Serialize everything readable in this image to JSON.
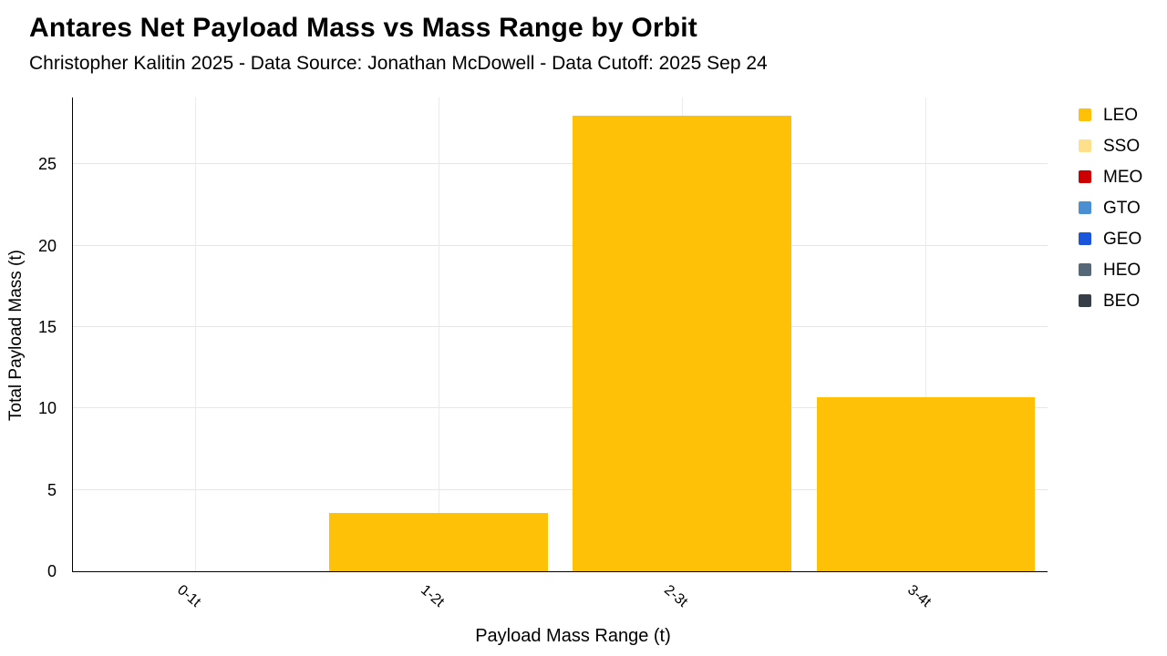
{
  "header": {
    "title": "Antares Net Payload Mass vs Mass Range by Orbit",
    "subtitle": "Christopher Kalitin 2025 - Data Source: Jonathan McDowell - Data Cutoff: 2025 Sep 24"
  },
  "chart_data": {
    "type": "bar",
    "stacked": true,
    "title": "Antares Net Payload Mass vs Mass Range by Orbit",
    "subtitle": "Christopher Kalitin 2025 - Data Source: Jonathan McDowell - Data Cutoff: 2025 Sep 24",
    "categories": [
      "0-1t",
      "1-2t",
      "2-3t",
      "3-4t"
    ],
    "series": [
      {
        "name": "LEO",
        "color": "#FFC107",
        "values": [
          0,
          3.6,
          28,
          10.7
        ]
      }
    ],
    "xlabel": "Payload Mass Range (t)",
    "ylabel": "Total Payload Mass (t)",
    "ylim": [
      0,
      29.1
    ],
    "yticks": [
      0,
      5,
      10,
      15,
      20,
      25
    ],
    "grid": true,
    "legend_position": "right"
  },
  "legend": {
    "items": [
      {
        "label": "LEO",
        "color": "#FFC107"
      },
      {
        "label": "SSO",
        "color": "#FFE08A"
      },
      {
        "label": "MEO",
        "color": "#CC0000"
      },
      {
        "label": "GTO",
        "color": "#4A8FD1"
      },
      {
        "label": "GEO",
        "color": "#1A56DB"
      },
      {
        "label": "HEO",
        "color": "#546878"
      },
      {
        "label": "BEO",
        "color": "#363F47"
      }
    ]
  }
}
